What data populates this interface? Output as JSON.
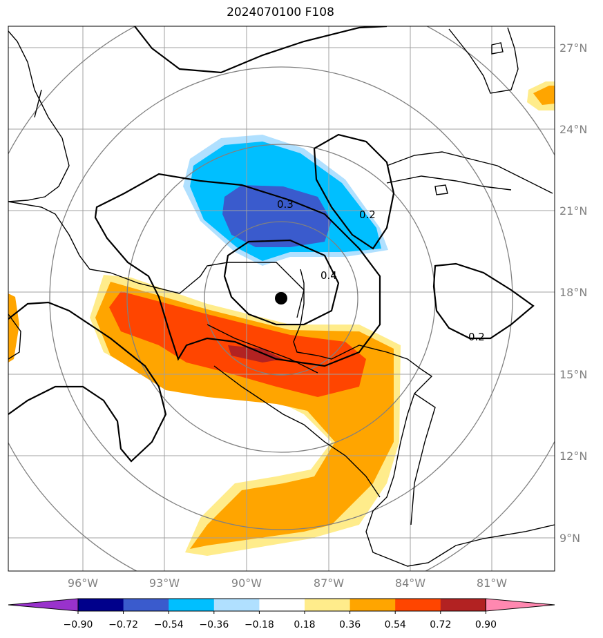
{
  "title": "2024070100 F108",
  "lat_labels": [
    "27°N",
    "24°N",
    "21°N",
    "18°N",
    "15°N",
    "12°N",
    "9°N"
  ],
  "lon_labels": [
    "96°W",
    "93°W",
    "90°W",
    "87°W",
    "84°W",
    "81°W"
  ],
  "contour_labels": [
    "0.3",
    "0.2",
    "0.4",
    "0.2"
  ],
  "colorbar": {
    "colors": [
      "#9932cc",
      "#00008b",
      "#3a5bcd",
      "#00bfff",
      "#b0e0ff",
      "#ffffff",
      "#ffec8b",
      "#ffa500",
      "#ff4500",
      "#b22222",
      "#ff88b0"
    ],
    "ticks": [
      "−0.90",
      "−0.72",
      "−0.54",
      "−0.36",
      "−0.18",
      "0.18",
      "0.36",
      "0.54",
      "0.72",
      "0.90"
    ]
  },
  "colors": {
    "grid": "#a0a0a0",
    "rings": "#808080",
    "coast": "#000000"
  }
}
